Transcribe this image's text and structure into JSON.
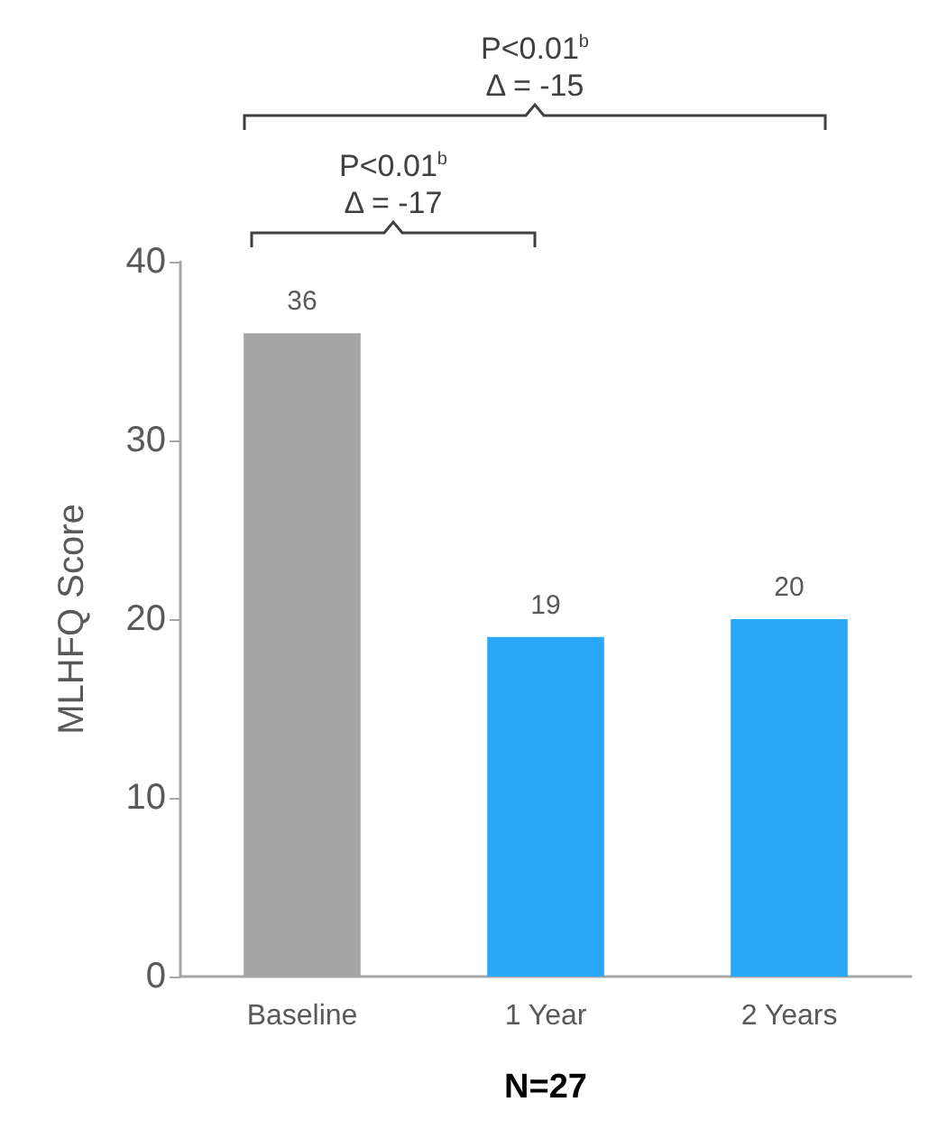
{
  "chart_data": {
    "type": "bar",
    "categories": [
      "Baseline",
      "1 Year",
      "2 Years"
    ],
    "values": [
      36,
      19,
      20
    ],
    "colors": [
      "#a6a6a6",
      "#29a8f7",
      "#29a8f7"
    ],
    "ylabel": "MLHFQ Score",
    "xlabel": "N=27",
    "ylim": [
      0,
      40
    ],
    "yticks": [
      0,
      10,
      20,
      30,
      40
    ],
    "data_labels": true,
    "grid": false,
    "annotations": [
      "P<0.01$^{b}$\nΔ = -17",
      "P<0.01$^{b}$\nΔ = -15"
    ]
  }
}
